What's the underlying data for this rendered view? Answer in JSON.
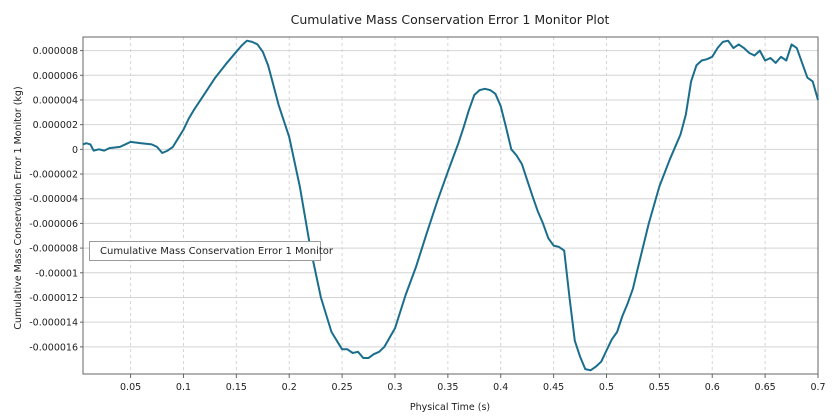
{
  "chart_data": {
    "type": "line",
    "title": "Cumulative Mass Conservation Error 1 Monitor Plot",
    "xlabel": "Physical Time (s)",
    "ylabel": "Cumulative Mass Conservation Error 1 Monitor (kg)",
    "xlim": [
      0.005,
      0.7
    ],
    "ylim": [
      -1.82e-05,
      9.1e-06
    ],
    "x_ticks": [
      0.05,
      0.1,
      0.15,
      0.2,
      0.25,
      0.3,
      0.35,
      0.4,
      0.45,
      0.5,
      0.55,
      0.6,
      0.65,
      0.7
    ],
    "x_tick_labels": [
      "0.05",
      "0.1",
      "0.15",
      "0.2",
      "0.25",
      "0.3",
      "0.35",
      "0.4",
      "0.45",
      "0.5",
      "0.55",
      "0.6",
      "0.65",
      "0.7"
    ],
    "y_ticks": [
      8e-06,
      6e-06,
      4e-06,
      2e-06,
      0,
      -2e-06,
      -4e-06,
      -6e-06,
      -8e-06,
      -1e-05,
      -1.2e-05,
      -1.4e-05,
      -1.6e-05
    ],
    "y_tick_labels": [
      "0.000008",
      "0.000006",
      "0.000004",
      "0.000002",
      "0",
      "-0.000002",
      "-0.000004",
      "-0.000006",
      "-0.000008",
      "-0.00001",
      "-0.000012",
      "-0.000014",
      "-0.000016"
    ],
    "grid": true,
    "legend_position": "middle-left",
    "colors": {
      "series": "#1a6e8c",
      "grid": "#d4d4d4",
      "axis": "#666666"
    },
    "series": [
      {
        "name": "Cumulative Mass Conservation Error 1 Monitor",
        "x": [
          0.005,
          0.008,
          0.012,
          0.015,
          0.02,
          0.025,
          0.03,
          0.04,
          0.05,
          0.06,
          0.07,
          0.075,
          0.08,
          0.085,
          0.09,
          0.095,
          0.1,
          0.105,
          0.11,
          0.12,
          0.13,
          0.14,
          0.15,
          0.155,
          0.16,
          0.165,
          0.17,
          0.175,
          0.18,
          0.185,
          0.19,
          0.2,
          0.21,
          0.22,
          0.23,
          0.24,
          0.25,
          0.255,
          0.26,
          0.265,
          0.27,
          0.275,
          0.28,
          0.285,
          0.29,
          0.3,
          0.31,
          0.32,
          0.33,
          0.34,
          0.35,
          0.36,
          0.365,
          0.37,
          0.375,
          0.38,
          0.385,
          0.39,
          0.395,
          0.4,
          0.405,
          0.41,
          0.415,
          0.42,
          0.425,
          0.43,
          0.435,
          0.44,
          0.445,
          0.45,
          0.455,
          0.46,
          0.465,
          0.47,
          0.475,
          0.48,
          0.485,
          0.49,
          0.495,
          0.5,
          0.505,
          0.51,
          0.515,
          0.52,
          0.525,
          0.53,
          0.54,
          0.55,
          0.56,
          0.57,
          0.575,
          0.58,
          0.585,
          0.59,
          0.595,
          0.6,
          0.605,
          0.61,
          0.615,
          0.62,
          0.625,
          0.63,
          0.635,
          0.64,
          0.645,
          0.65,
          0.655,
          0.66,
          0.665,
          0.67,
          0.675,
          0.68,
          0.685,
          0.69,
          0.695,
          0.7
        ],
        "y": [
          4e-07,
          5e-07,
          4e-07,
          -1e-07,
          0,
          -1e-07,
          1e-07,
          2e-07,
          6e-07,
          5e-07,
          4e-07,
          2e-07,
          -3e-07,
          -1e-07,
          2e-07,
          9e-07,
          1.6e-06,
          2.5e-06,
          3.2e-06,
          4.5e-06,
          5.8e-06,
          6.9e-06,
          7.9e-06,
          8.4e-06,
          8.8e-06,
          8.7e-06,
          8.5e-06,
          7.9e-06,
          6.8e-06,
          5.2e-06,
          3.6e-06,
          1e-06,
          -3e-06,
          -8e-06,
          -1.2e-05,
          -1.48e-05,
          -1.62e-05,
          -1.62e-05,
          -1.65e-05,
          -1.64e-05,
          -1.69e-05,
          -1.69e-05,
          -1.66e-05,
          -1.64e-05,
          -1.6e-05,
          -1.45e-05,
          -1.18e-05,
          -9.5e-06,
          -6.8e-06,
          -4.2e-06,
          -1.8e-06,
          5e-07,
          1.8e-06,
          3.2e-06,
          4.4e-06,
          4.8e-06,
          4.9e-06,
          4.8e-06,
          4.5e-06,
          3.5e-06,
          1.8e-06,
          0,
          -5e-07,
          -1.2e-06,
          -2.5e-06,
          -3.8e-06,
          -5e-06,
          -6e-06,
          -7.2e-06,
          -7.8e-06,
          -7.9e-06,
          -8.2e-06,
          -1.2e-05,
          -1.55e-05,
          -1.68e-05,
          -1.78e-05,
          -1.79e-05,
          -1.76e-05,
          -1.72e-05,
          -1.63e-05,
          -1.54e-05,
          -1.48e-05,
          -1.35e-05,
          -1.25e-05,
          -1.13e-05,
          -9.5e-06,
          -6e-06,
          -3e-06,
          -8e-07,
          1.2e-06,
          2.8e-06,
          5.5e-06,
          6.8e-06,
          7.2e-06,
          7.3e-06,
          7.5e-06,
          8.2e-06,
          8.7e-06,
          8.8e-06,
          8.2e-06,
          8.5e-06,
          8.2e-06,
          7.8e-06,
          7.6e-06,
          8e-06,
          7.2e-06,
          7.4e-06,
          7e-06,
          7.5e-06,
          7.2e-06,
          8.5e-06,
          8.2e-06,
          7e-06,
          5.8e-06,
          5.5e-06,
          4e-06
        ]
      }
    ]
  }
}
